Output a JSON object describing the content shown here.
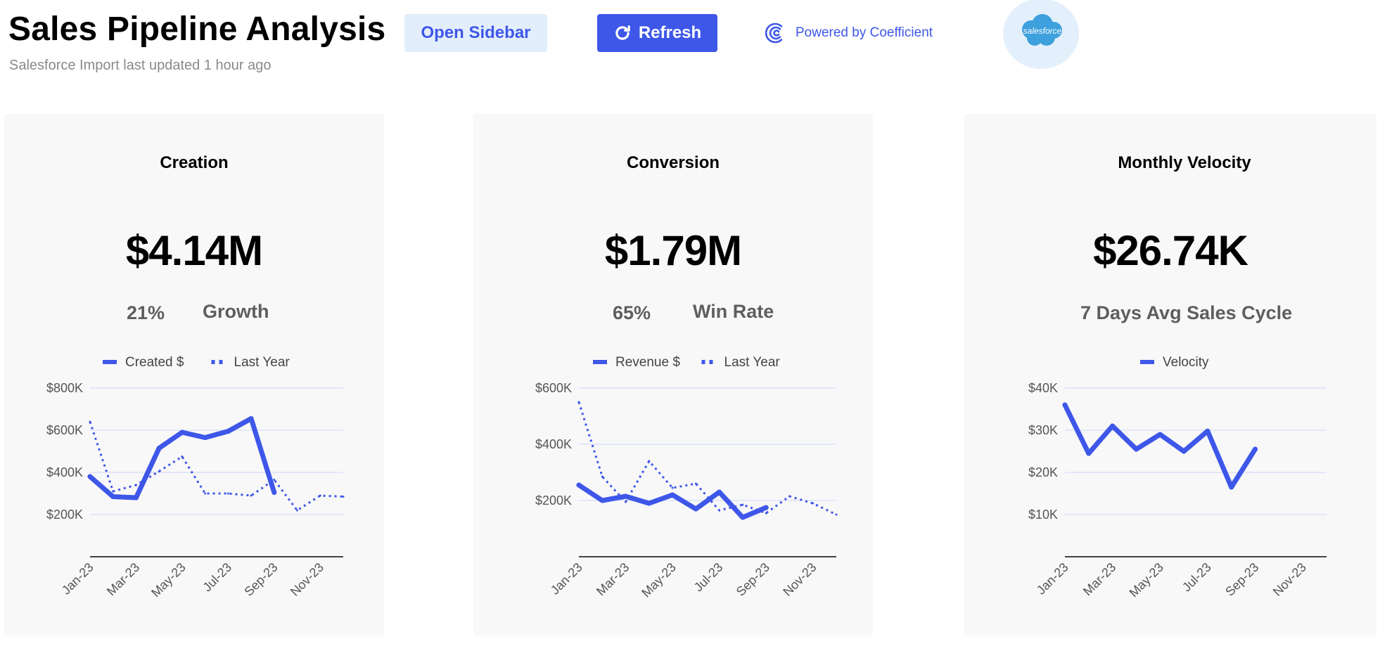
{
  "header": {
    "title": "Sales Pipeline Analysis",
    "subtitle": "Salesforce Import last updated 1 hour ago",
    "open_sidebar_label": "Open Sidebar",
    "refresh_label": "Refresh",
    "powered_by_label": "Powered by Coefficient",
    "salesforce_logo_text": "salesforce",
    "accent_color": "#3e57e9"
  },
  "cards": [
    {
      "title": "Creation",
      "value": "$4.14M",
      "stat_value": "21%",
      "stat_label": "Growth"
    },
    {
      "title": "Conversion",
      "value": "$1.79M",
      "stat_value": "65%",
      "stat_label": "Win Rate"
    },
    {
      "title": "Monthly Velocity",
      "value": "$26.74K",
      "stat_label": "7 Days Avg Sales Cycle"
    }
  ],
  "chart_data": [
    {
      "type": "line",
      "x_tick_labels": [
        "Jan-23",
        "Mar-23",
        "May-23",
        "Jul-23",
        "Sep-23",
        "Nov-23"
      ],
      "x": [
        "Jan-23",
        "Feb-23",
        "Mar-23",
        "Apr-23",
        "May-23",
        "Jun-23",
        "Jul-23",
        "Aug-23",
        "Sep-23",
        "Oct-23",
        "Nov-23",
        "Dec-23"
      ],
      "y_ticks": [
        "$200K",
        "$400K",
        "$600K",
        "$800K"
      ],
      "y_tick_values": [
        200000,
        400000,
        600000,
        800000
      ],
      "ylim": [
        0,
        800000
      ],
      "grid": true,
      "legend_position": "top",
      "series": [
        {
          "name": "Created $",
          "style": "solid",
          "color": "#3e57e9",
          "values": [
            380000,
            285000,
            280000,
            515000,
            590000,
            565000,
            595000,
            655000,
            305000,
            null,
            null,
            null
          ]
        },
        {
          "name": "Last Year",
          "style": "dotted",
          "color": "#3e57e9",
          "values": [
            640000,
            310000,
            340000,
            405000,
            475000,
            300000,
            300000,
            290000,
            365000,
            220000,
            290000,
            285000
          ]
        }
      ]
    },
    {
      "type": "line",
      "x_tick_labels": [
        "Jan-23",
        "Mar-23",
        "May-23",
        "Jul-23",
        "Sep-23",
        "Nov-23"
      ],
      "x": [
        "Jan-23",
        "Feb-23",
        "Mar-23",
        "Apr-23",
        "May-23",
        "Jun-23",
        "Jul-23",
        "Aug-23",
        "Sep-23",
        "Oct-23",
        "Nov-23",
        "Dec-23"
      ],
      "y_ticks": [
        "$200K",
        "$400K",
        "$600K"
      ],
      "y_tick_values": [
        200000,
        400000,
        600000
      ],
      "ylim": [
        0,
        600000
      ],
      "grid": true,
      "legend_position": "top",
      "series": [
        {
          "name": "Revenue $",
          "style": "solid",
          "color": "#3e57e9",
          "values": [
            255000,
            200000,
            215000,
            190000,
            220000,
            170000,
            230000,
            140000,
            175000,
            null,
            null,
            null
          ]
        },
        {
          "name": "Last Year",
          "style": "dotted",
          "color": "#3e57e9",
          "values": [
            550000,
            285000,
            195000,
            340000,
            245000,
            260000,
            165000,
            185000,
            155000,
            215000,
            190000,
            150000
          ]
        }
      ]
    },
    {
      "type": "line",
      "x_tick_labels": [
        "Jan-23",
        "Mar-23",
        "May-23",
        "Jul-23",
        "Sep-23",
        "Nov-23"
      ],
      "x": [
        "Jan-23",
        "Feb-23",
        "Mar-23",
        "Apr-23",
        "May-23",
        "Jun-23",
        "Jul-23",
        "Aug-23",
        "Sep-23",
        "Oct-23",
        "Nov-23",
        "Dec-23"
      ],
      "y_ticks": [
        "$10K",
        "$20K",
        "$30K",
        "$40K"
      ],
      "y_tick_values": [
        10000,
        20000,
        30000,
        40000
      ],
      "ylim": [
        0,
        40000
      ],
      "grid": true,
      "legend_position": "top",
      "series": [
        {
          "name": "Velocity",
          "style": "solid",
          "color": "#3e57e9",
          "values": [
            36000,
            24500,
            31000,
            25500,
            29000,
            25000,
            29800,
            16500,
            25500,
            null,
            null,
            null
          ]
        }
      ]
    }
  ]
}
